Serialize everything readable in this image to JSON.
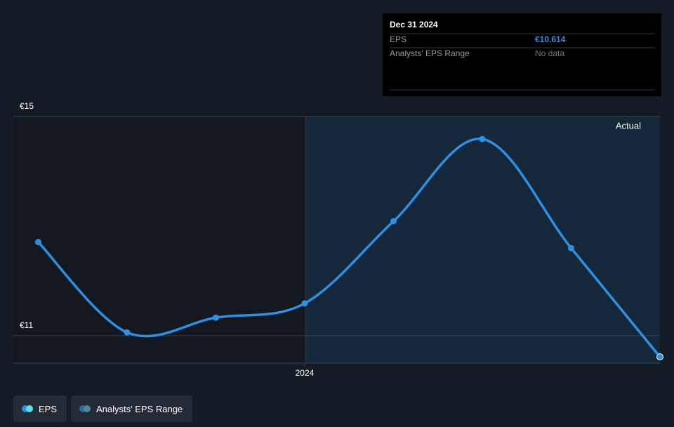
{
  "chart_data": {
    "type": "line",
    "x": [
      2023.25,
      2023.5,
      2023.75,
      2024,
      2024.25,
      2024.5,
      2024.75,
      2025
    ],
    "series": [
      {
        "name": "EPS",
        "color": "#2f8fe0",
        "values": [
          12.71,
          11.06,
          11.33,
          11.59,
          13.09,
          14.59,
          12.6,
          10.614
        ]
      }
    ],
    "xlim": [
      2023.18,
      2025.0
    ],
    "xticks": [
      2024
    ],
    "ylim": [
      10.5,
      15
    ],
    "yticks": [
      {
        "value": 11,
        "label": "€11"
      },
      {
        "value": 15,
        "label": "€15"
      }
    ],
    "region_label": "Actual",
    "legend": [
      "EPS",
      "Analysts' EPS Range"
    ],
    "tooltip": {
      "date": "Dec 31 2024",
      "rows": [
        {
          "label": "EPS",
          "value": "€10.614"
        },
        {
          "label": "Analysts' EPS Range",
          "value": "No data"
        }
      ]
    }
  }
}
